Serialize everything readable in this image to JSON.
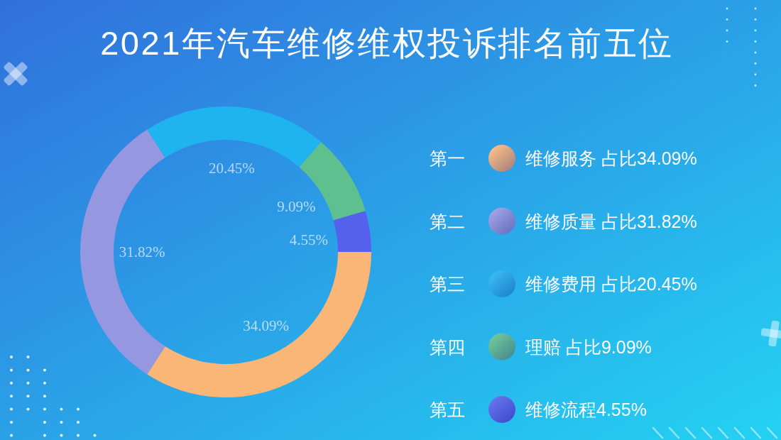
{
  "chart_data": {
    "type": "donut",
    "title": "2021年汽车维修维权投诉排名前五位",
    "categories": [
      "维修服务 占比34.09%",
      "维修质量 占比31.82%",
      "维修费用 占比20.45%",
      "理赔 占比9.09%",
      "维修流程4.55%"
    ],
    "values": [
      34.09,
      31.82,
      20.45,
      9.09,
      4.55
    ],
    "colors": [
      "#f9b676",
      "#9598e0",
      "#1fb4f0",
      "#5fc08f",
      "#5560ec"
    ],
    "value_labels": [
      "34.09%",
      "31.82%",
      "20.45%",
      "9.09%",
      "4.55%"
    ],
    "annotations": [
      "第一",
      "第二",
      "第三",
      "第四",
      "第五"
    ],
    "legend": "right"
  }
}
